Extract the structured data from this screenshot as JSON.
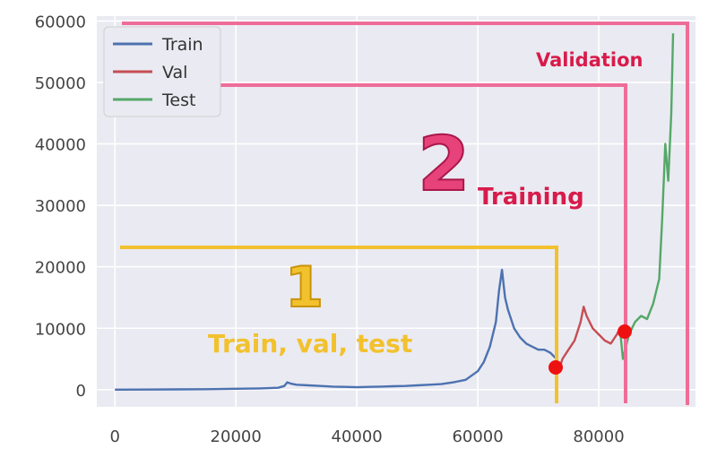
{
  "chart_data": {
    "type": "line",
    "title": "",
    "xlabel": "",
    "ylabel": "",
    "xlim": [
      -3000,
      96000
    ],
    "ylim": [
      -2800,
      60800
    ],
    "xticks": [
      0,
      20000,
      40000,
      60000,
      80000
    ],
    "yticks": [
      0,
      10000,
      20000,
      30000,
      40000,
      50000,
      60000
    ],
    "xtick_labels": [
      "0",
      "20000",
      "40000",
      "60000",
      "80000"
    ],
    "ytick_labels": [
      "0",
      "10000",
      "20000",
      "30000",
      "40000",
      "50000",
      "60000"
    ],
    "grid": true,
    "legend_position": "top-left",
    "series": [
      {
        "name": "Train",
        "color": "#4c72b0",
        "x": [
          0,
          5000,
          10000,
          15000,
          20000,
          24000,
          27000,
          28000,
          28500,
          29000,
          30000,
          32000,
          34000,
          36000,
          38000,
          40000,
          42000,
          44000,
          46000,
          48000,
          50000,
          52000,
          54000,
          56000,
          58000,
          60000,
          61000,
          62000,
          63000,
          63500,
          64000,
          64500,
          65000,
          65500,
          66000,
          67000,
          68000,
          69000,
          70000,
          71000,
          72000,
          73000,
          73500
        ],
        "values": [
          0,
          20,
          40,
          80,
          150,
          200,
          300,
          600,
          1200,
          1000,
          800,
          700,
          600,
          500,
          450,
          400,
          450,
          500,
          550,
          600,
          700,
          800,
          900,
          1200,
          1600,
          3000,
          4500,
          7000,
          11000,
          16000,
          19500,
          15000,
          13000,
          11500,
          10000,
          8500,
          7500,
          7000,
          6500,
          6500,
          6000,
          5000,
          3500
        ]
      },
      {
        "name": "Val",
        "color": "#c44e52",
        "x": [
          73500,
          74000,
          75000,
          76000,
          77000,
          77500,
          78000,
          79000,
          80000,
          81000,
          82000,
          83000,
          83500
        ],
        "values": [
          3500,
          5000,
          6500,
          8000,
          11000,
          13500,
          12000,
          10000,
          9000,
          8000,
          7500,
          9000,
          10000
        ]
      },
      {
        "name": "Test",
        "color": "#55a868",
        "x": [
          83500,
          84000,
          84500,
          85000,
          85500,
          86000,
          87000,
          88000,
          89000,
          90000,
          90500,
          91000,
          91500,
          92000,
          92300
        ],
        "values": [
          10000,
          5000,
          7000,
          9000,
          10000,
          11000,
          12000,
          11500,
          14000,
          18000,
          28000,
          40000,
          34000,
          45000,
          58000
        ]
      }
    ],
    "annotations": [
      {
        "text": "Validation",
        "color": "#d81b4a"
      },
      {
        "text": "Training",
        "color": "#d81b4a"
      },
      {
        "text": "2",
        "color": "#e8427a"
      },
      {
        "text": "1",
        "color": "#f2c12e"
      },
      {
        "text": "Train, val, test",
        "color": "#f2c12e"
      }
    ]
  }
}
